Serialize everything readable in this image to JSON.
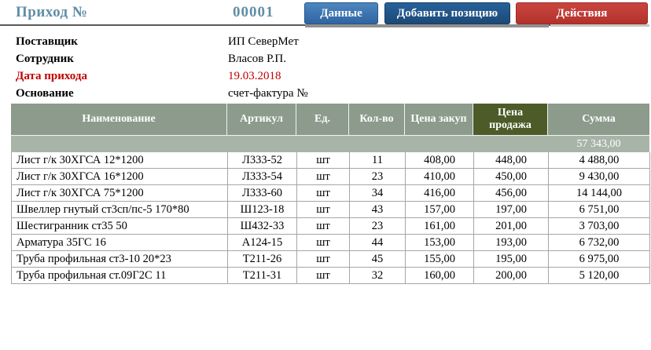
{
  "window": {
    "title": "Приход №",
    "number": "00001"
  },
  "toolbar": {
    "buttons": [
      {
        "label": "Данные"
      },
      {
        "label": "Добавить позицию"
      },
      {
        "label": "Действия"
      }
    ]
  },
  "form": {
    "fields": [
      {
        "label": "Поставщик",
        "value": "ИП СеверМет",
        "highlight": false
      },
      {
        "label": "Сотрудник",
        "value": "Власов Р.П.",
        "highlight": false
      },
      {
        "label": "Дата прихода",
        "value": "19.03.2018",
        "highlight": true
      },
      {
        "label": "Основание",
        "value": "счет-фактура №",
        "highlight": false
      }
    ]
  },
  "table": {
    "columns": [
      "Наименование",
      "Артикул",
      "Ед.",
      "Кол-во",
      "Цена закуп",
      "Цена продажа",
      "Сумма"
    ],
    "total_sum": "57 343,00",
    "rows": [
      [
        "Лист г/к  30ХГСА 12*1200",
        "Л333-52",
        "шт",
        "11",
        "408,00",
        "448,00",
        "4 488,00"
      ],
      [
        "Лист г/к  30ХГСА 16*1200",
        "Л333-54",
        "шт",
        "23",
        "410,00",
        "450,00",
        "9 430,00"
      ],
      [
        "Лист г/к  30ХГСА 75*1200",
        "Л333-60",
        "шт",
        "34",
        "416,00",
        "456,00",
        "14 144,00"
      ],
      [
        "Швеллер гнутый  ст3сп/пс-5 170*80",
        "Ш123-18",
        "шт",
        "43",
        "157,00",
        "197,00",
        "6 751,00"
      ],
      [
        "Шестигранник  ст35 50",
        "Ш432-33",
        "шт",
        "23",
        "161,00",
        "201,00",
        "3 703,00"
      ],
      [
        "Арматура  35ГС 16",
        "А124-15",
        "шт",
        "44",
        "153,00",
        "193,00",
        "6 732,00"
      ],
      [
        "Труба профильная  ст3-10 20*23",
        "Т211-26",
        "шт",
        "45",
        "155,00",
        "195,00",
        "6 975,00"
      ],
      [
        "Труба профильная ст.09Г2С 11",
        "Т211-31",
        "шт",
        "32",
        "160,00",
        "200,00",
        "5 120,00"
      ]
    ]
  },
  "colors": {
    "title_text": "#628ea6",
    "header_bg": "#8c9b8c",
    "header_highlight_bg": "#4c5b27",
    "summary_bg": "#a9b4a9",
    "date_red": "#c00000",
    "btn_data_bg": "#376fa8",
    "btn_add_bg": "#1f4e79",
    "btn_actions_bg": "#be3a34"
  }
}
